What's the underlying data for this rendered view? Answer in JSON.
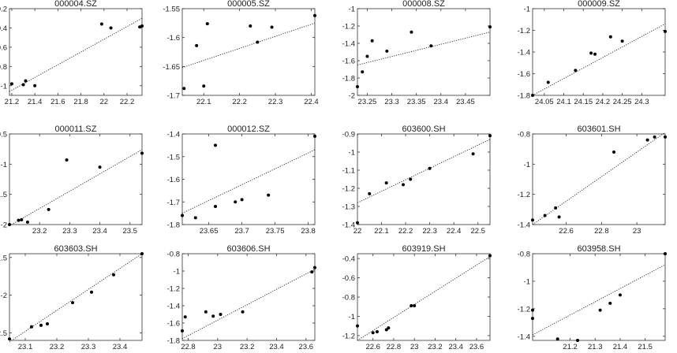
{
  "chart_data": [
    {
      "type": "scatter",
      "title": "000004.SZ",
      "xlim": [
        21.18,
        22.33
      ],
      "ylim": [
        -1.1,
        -0.2
      ],
      "xticks": [
        21.2,
        21.4,
        21.6,
        21.8,
        22,
        22.2
      ],
      "xtick_labels": [
        "21.2",
        "21.4",
        "21.6",
        "21.8",
        "22",
        "22.2"
      ],
      "yticks": [
        -1,
        -0.8,
        -0.6,
        -0.4,
        -0.2
      ],
      "ytick_labels": [
        "-1",
        "-0.8",
        "-0.6",
        "-0.4",
        "-0.2"
      ],
      "points": [
        [
          21.2,
          -0.98
        ],
        [
          21.3,
          -0.99
        ],
        [
          21.32,
          -0.95
        ],
        [
          21.4,
          -1.0
        ],
        [
          21.98,
          -0.36
        ],
        [
          22.06,
          -0.4
        ],
        [
          22.31,
          -0.39
        ],
        [
          22.33,
          -0.38
        ]
      ],
      "fit": [
        [
          21.18,
          -1.06
        ],
        [
          22.33,
          -0.3
        ]
      ]
    },
    {
      "type": "scatter",
      "title": "000005.SZ",
      "xlim": [
        22.04,
        22.41
      ],
      "ylim": [
        -1.7,
        -1.55
      ],
      "xticks": [
        22.1,
        22.2,
        22.3,
        22.4
      ],
      "xtick_labels": [
        "22.1",
        "22.2",
        "22.3",
        "22.4"
      ],
      "yticks": [
        -1.7,
        -1.65,
        -1.6,
        -1.55
      ],
      "ytick_labels": [
        "-1.7",
        "-1.65",
        "-1.6",
        "-1.55"
      ],
      "points": [
        [
          22.045,
          -1.688
        ],
        [
          22.08,
          -1.614
        ],
        [
          22.1,
          -1.684
        ],
        [
          22.11,
          -1.576
        ],
        [
          22.23,
          -1.58
        ],
        [
          22.25,
          -1.608
        ],
        [
          22.29,
          -1.582
        ],
        [
          22.41,
          -1.562
        ]
      ],
      "fit": [
        [
          22.04,
          -1.652
        ],
        [
          22.41,
          -1.575
        ]
      ]
    },
    {
      "type": "scatter",
      "title": "000008.SZ",
      "xlim": [
        23.23,
        23.5
      ],
      "ylim": [
        -2,
        -1
      ],
      "xticks": [
        23.25,
        23.3,
        23.35,
        23.4,
        23.45
      ],
      "xtick_labels": [
        "23.25",
        "23.3",
        "23.35",
        "23.4",
        "23.45"
      ],
      "yticks": [
        -2,
        -1.8,
        -1.6,
        -1.4,
        -1.2,
        -1
      ],
      "ytick_labels": [
        "-2",
        "-1.8",
        "-1.6",
        "-1.4",
        "-1.2",
        "-1"
      ],
      "points": [
        [
          23.23,
          -1.9
        ],
        [
          23.24,
          -1.73
        ],
        [
          23.25,
          -1.55
        ],
        [
          23.26,
          -1.37
        ],
        [
          23.29,
          -1.49
        ],
        [
          23.34,
          -1.27
        ],
        [
          23.38,
          -1.43
        ],
        [
          23.5,
          -1.21
        ]
      ],
      "fit": [
        [
          23.23,
          -1.65
        ],
        [
          23.5,
          -1.27
        ]
      ]
    },
    {
      "type": "scatter",
      "title": "000009.SZ",
      "xlim": [
        24.02,
        24.36
      ],
      "ylim": [
        -1.8,
        -1
      ],
      "xticks": [
        24.05,
        24.1,
        24.15,
        24.2,
        24.25,
        24.3
      ],
      "xtick_labels": [
        "24.05",
        "24.1",
        "24.15",
        "24.2",
        "24.25",
        "24.3"
      ],
      "yticks": [
        -1.8,
        -1.6,
        -1.4,
        -1.2,
        -1
      ],
      "ytick_labels": [
        "-1.8",
        "-1.6",
        "-1.4",
        "-1.2",
        "-1"
      ],
      "points": [
        [
          24.02,
          -1.8
        ],
        [
          24.06,
          -1.68
        ],
        [
          24.13,
          -1.57
        ],
        [
          24.17,
          -1.41
        ],
        [
          24.18,
          -1.42
        ],
        [
          24.22,
          -1.26
        ],
        [
          24.25,
          -1.3
        ],
        [
          24.36,
          -1.21
        ]
      ],
      "fit": [
        [
          24.02,
          -1.8
        ],
        [
          24.36,
          -1.14
        ]
      ]
    },
    {
      "type": "scatter",
      "title": "000011.SZ",
      "xlim": [
        23.1,
        23.54
      ],
      "ylim": [
        -2,
        -0.5
      ],
      "xticks": [
        23.2,
        23.3,
        23.4,
        23.5
      ],
      "xtick_labels": [
        "23.2",
        "23.3",
        "23.4",
        "23.5"
      ],
      "yticks": [
        -2,
        -1.5,
        -1,
        -0.5
      ],
      "ytick_labels": [
        "-2",
        "-1.5",
        "-1",
        "-0.5"
      ],
      "points": [
        [
          23.1,
          -2.0
        ],
        [
          23.13,
          -1.93
        ],
        [
          23.14,
          -1.92
        ],
        [
          23.16,
          -1.96
        ],
        [
          23.23,
          -1.75
        ],
        [
          23.29,
          -0.93
        ],
        [
          23.4,
          -1.05
        ],
        [
          23.54,
          -0.82
        ]
      ],
      "fit": [
        [
          23.1,
          -2.02
        ],
        [
          23.54,
          -0.76
        ]
      ]
    },
    {
      "type": "scatter",
      "title": "000012.SZ",
      "xlim": [
        23.61,
        23.81
      ],
      "ylim": [
        -1.8,
        -1.4
      ],
      "xticks": [
        23.65,
        23.7,
        23.75,
        23.8
      ],
      "xtick_labels": [
        "23.65",
        "23.7",
        "23.75",
        "23.8"
      ],
      "yticks": [
        -1.8,
        -1.7,
        -1.6,
        -1.5,
        -1.4
      ],
      "ytick_labels": [
        "-1.8",
        "-1.7",
        "-1.6",
        "-1.5",
        "-1.4"
      ],
      "points": [
        [
          23.61,
          -1.76
        ],
        [
          23.63,
          -1.77
        ],
        [
          23.66,
          -1.45
        ],
        [
          23.66,
          -1.72
        ],
        [
          23.69,
          -1.7
        ],
        [
          23.7,
          -1.69
        ],
        [
          23.74,
          -1.67
        ],
        [
          23.81,
          -1.41
        ]
      ],
      "fit": [
        [
          23.61,
          -1.75
        ],
        [
          23.81,
          -1.47
        ]
      ]
    },
    {
      "type": "scatter",
      "title": "603600.SH",
      "xlim": [
        22,
        22.55
      ],
      "ylim": [
        -1.4,
        -0.9
      ],
      "xticks": [
        22,
        22.1,
        22.2,
        22.3,
        22.4,
        22.5
      ],
      "xtick_labels": [
        "22",
        "22.1",
        "22.2",
        "22.3",
        "22.4",
        "22.5"
      ],
      "yticks": [
        -1.4,
        -1.3,
        -1.2,
        -1.1,
        -1,
        -0.9
      ],
      "ytick_labels": [
        "-1.4",
        "-1.3",
        "-1.2",
        "-1.1",
        "-1",
        "-0.9"
      ],
      "points": [
        [
          22.0,
          -1.39
        ],
        [
          22.05,
          -1.23
        ],
        [
          22.12,
          -1.17
        ],
        [
          22.19,
          -1.18
        ],
        [
          22.22,
          -1.15
        ],
        [
          22.3,
          -1.09
        ],
        [
          22.48,
          -1.01
        ],
        [
          22.55,
          -0.91
        ]
      ],
      "fit": [
        [
          22.0,
          -1.28
        ],
        [
          22.55,
          -0.93
        ]
      ]
    },
    {
      "type": "scatter",
      "title": "603601.SH",
      "xlim": [
        22.41,
        23.16
      ],
      "ylim": [
        -1.4,
        -0.8
      ],
      "xticks": [
        22.6,
        22.8,
        23
      ],
      "xtick_labels": [
        "22.6",
        "22.8",
        "23"
      ],
      "yticks": [
        -1.4,
        -1.2,
        -1,
        -0.8
      ],
      "ytick_labels": [
        "-1.4",
        "-1.2",
        "-1",
        "-0.8"
      ],
      "points": [
        [
          22.41,
          -1.37
        ],
        [
          22.48,
          -1.34
        ],
        [
          22.54,
          -1.29
        ],
        [
          22.56,
          -1.35
        ],
        [
          22.87,
          -0.92
        ],
        [
          23.06,
          -0.84
        ],
        [
          23.1,
          -0.82
        ],
        [
          23.16,
          -0.82
        ]
      ],
      "fit": [
        [
          22.41,
          -1.4
        ],
        [
          23.16,
          -0.79
        ]
      ]
    },
    {
      "type": "scatter",
      "title": "603603.SH",
      "xlim": [
        23.05,
        23.47
      ],
      "ylim": [
        -2.6,
        -1.45
      ],
      "xticks": [
        23.1,
        23.2,
        23.3,
        23.4
      ],
      "xtick_labels": [
        "23.1",
        "23.2",
        "23.3",
        "23.4"
      ],
      "yticks": [
        -2.5,
        -2,
        -1.5
      ],
      "ytick_labels": [
        "-2.5",
        "-2",
        "-1.5"
      ],
      "points": [
        [
          23.05,
          -2.58
        ],
        [
          23.12,
          -2.42
        ],
        [
          23.15,
          -2.4
        ],
        [
          23.17,
          -2.38
        ],
        [
          23.25,
          -2.1
        ],
        [
          23.31,
          -1.96
        ],
        [
          23.38,
          -1.73
        ],
        [
          23.47,
          -1.45
        ]
      ],
      "fit": [
        [
          23.05,
          -2.62
        ],
        [
          23.47,
          -1.45
        ]
      ]
    },
    {
      "type": "scatter",
      "title": "603606.SH",
      "xlim": [
        22.76,
        23.66
      ],
      "ylim": [
        -1.8,
        -0.8
      ],
      "xticks": [
        22.8,
        23,
        23.2,
        23.4,
        23.6
      ],
      "xtick_labels": [
        "22.8",
        "23",
        "23.2",
        "23.4",
        "23.6"
      ],
      "yticks": [
        -1.8,
        -1.6,
        -1.4,
        -1.2,
        -1,
        -0.8
      ],
      "ytick_labels": [
        "-1.8",
        "-1.6",
        "-1.4",
        "-1.2",
        "-1",
        "-0.8"
      ],
      "points": [
        [
          22.76,
          -1.69
        ],
        [
          22.78,
          -1.53
        ],
        [
          22.92,
          -1.47
        ],
        [
          22.97,
          -1.52
        ],
        [
          23.02,
          -1.5
        ],
        [
          23.17,
          -1.47
        ],
        [
          23.64,
          -1.01
        ],
        [
          23.66,
          -0.96
        ]
      ],
      "fit": [
        [
          22.76,
          -1.78
        ],
        [
          23.66,
          -0.98
        ]
      ]
    },
    {
      "type": "scatter",
      "title": "603919.SH",
      "xlim": [
        22.45,
        23.73
      ],
      "ylim": [
        -1.25,
        -0.35
      ],
      "xticks": [
        22.6,
        22.8,
        23,
        23.2,
        23.4,
        23.6
      ],
      "xtick_labels": [
        "22.6",
        "22.8",
        "23",
        "23.2",
        "23.4",
        "23.6"
      ],
      "yticks": [
        -1.2,
        -1,
        -0.8,
        -0.6,
        -0.4
      ],
      "ytick_labels": [
        "-1.2",
        "-1",
        "-0.8",
        "-0.6",
        "-0.4"
      ],
      "points": [
        [
          22.45,
          -1.1
        ],
        [
          22.6,
          -1.17
        ],
        [
          22.64,
          -1.16
        ],
        [
          22.73,
          -1.14
        ],
        [
          22.75,
          -1.12
        ],
        [
          22.97,
          -0.89
        ],
        [
          23.0,
          -0.89
        ],
        [
          23.73,
          -0.37
        ]
      ],
      "fit": [
        [
          22.45,
          -1.25
        ],
        [
          23.73,
          -0.38
        ]
      ]
    },
    {
      "type": "scatter",
      "title": "603958.SH",
      "xlim": [
        21.05,
        21.58
      ],
      "ylim": [
        -1.43,
        -0.8
      ],
      "xticks": [
        21.2,
        21.3,
        21.4,
        21.5
      ],
      "xtick_labels": [
        "21.2",
        "21.3",
        "21.4",
        "21.5"
      ],
      "yticks": [
        -1.4,
        -1.2,
        -1,
        -0.8
      ],
      "ytick_labels": [
        "-1.4",
        "-1.2",
        "-1",
        "-0.8"
      ],
      "points": [
        [
          21.05,
          -1.21
        ],
        [
          21.05,
          -1.27
        ],
        [
          21.15,
          -1.42
        ],
        [
          21.23,
          -1.43
        ],
        [
          21.32,
          -1.21
        ],
        [
          21.36,
          -1.16
        ],
        [
          21.4,
          -1.1
        ],
        [
          21.58,
          -0.8
        ]
      ],
      "fit": [
        [
          21.05,
          -1.39
        ],
        [
          21.58,
          -0.88
        ]
      ]
    }
  ]
}
